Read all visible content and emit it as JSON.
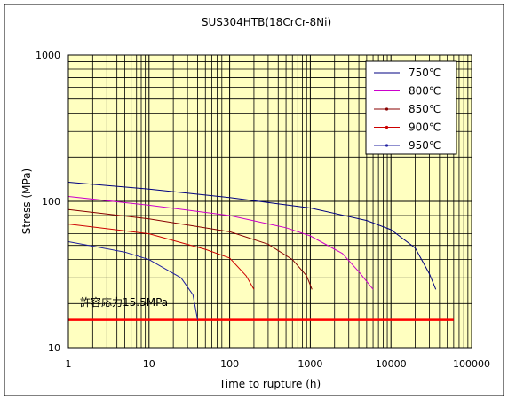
{
  "chart_data": {
    "type": "line",
    "title": "SUS304HTB(18CrCr-8Ni)",
    "xlabel": "Time to rupture (h)",
    "ylabel": "Stress (MPa)",
    "x_scale": "log",
    "y_scale": "log",
    "xlim": [
      1,
      100000
    ],
    "ylim": [
      10,
      1000
    ],
    "x_ticks": [
      1,
      10,
      100,
      1000,
      10000,
      100000
    ],
    "x_tick_labels": [
      "1",
      "10",
      "100",
      "1000",
      "10000",
      "100000"
    ],
    "y_ticks": [
      10,
      100,
      1000
    ],
    "y_tick_labels": [
      "10",
      "100",
      "1000"
    ],
    "grid": true,
    "plot_background": "#ffffc0",
    "legend_position": "top-right",
    "series": [
      {
        "name": "750℃",
        "color": "#000080",
        "points": [
          [
            1,
            135
          ],
          [
            10,
            121
          ],
          [
            100,
            106
          ],
          [
            1000,
            90
          ],
          [
            5000,
            74
          ],
          [
            10000,
            64
          ],
          [
            20000,
            48
          ],
          [
            30000,
            32
          ],
          [
            36000,
            25
          ]
        ]
      },
      {
        "name": "800℃",
        "color": "#cc00cc",
        "points": [
          [
            1,
            108
          ],
          [
            10,
            94
          ],
          [
            100,
            80
          ],
          [
            500,
            66
          ],
          [
            1000,
            58
          ],
          [
            2500,
            44
          ],
          [
            4000,
            33
          ],
          [
            6000,
            25
          ]
        ]
      },
      {
        "name": "850℃",
        "color": "#880000",
        "points": [
          [
            1,
            88
          ],
          [
            10,
            76
          ],
          [
            100,
            62
          ],
          [
            300,
            51
          ],
          [
            600,
            40
          ],
          [
            900,
            31
          ],
          [
            1050,
            25
          ]
        ]
      },
      {
        "name": "900℃",
        "color": "#cc0000",
        "points": [
          [
            1,
            70
          ],
          [
            10,
            60
          ],
          [
            50,
            47
          ],
          [
            100,
            41
          ],
          [
            160,
            31
          ],
          [
            200,
            25
          ]
        ]
      },
      {
        "name": "950℃",
        "color": "#2020a0",
        "points": [
          [
            1,
            53
          ],
          [
            5,
            45
          ],
          [
            10,
            40
          ],
          [
            25,
            30
          ],
          [
            35,
            23
          ],
          [
            40,
            15.5
          ]
        ]
      }
    ],
    "reference_line": {
      "label": "許容応力15.5MPa",
      "value": 15.5,
      "x_range": [
        1,
        60000
      ],
      "color": "#ff0000"
    }
  }
}
